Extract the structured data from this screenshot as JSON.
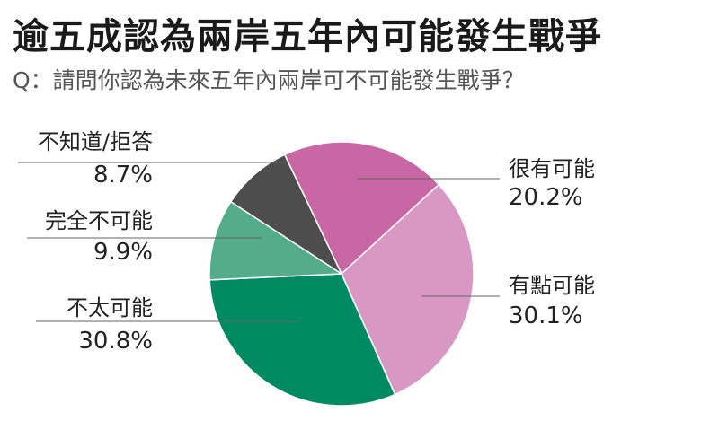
{
  "chart_data": {
    "type": "pie",
    "title": "逾五成認為兩岸五年內可能發生戰爭",
    "subtitle": "Q：請問你認為未來五年內兩岸可不可能發生戰爭？",
    "slices": [
      {
        "label": "很有可能",
        "value": 20.2,
        "value_label": "20.2%",
        "color": "#c966a4"
      },
      {
        "label": "有點可能",
        "value": 30.1,
        "value_label": "30.1%",
        "color": "#d898c3"
      },
      {
        "label": "不太可能",
        "value": 30.8,
        "value_label": "30.8%",
        "color": "#008a63"
      },
      {
        "label": "完全不可能",
        "value": 9.9,
        "value_label": "9.9%",
        "color": "#54ac8d"
      },
      {
        "label": "不知道/拒答",
        "value": 8.7,
        "value_label": "8.7%",
        "color": "#4d4d4d"
      }
    ],
    "legend": "none"
  }
}
